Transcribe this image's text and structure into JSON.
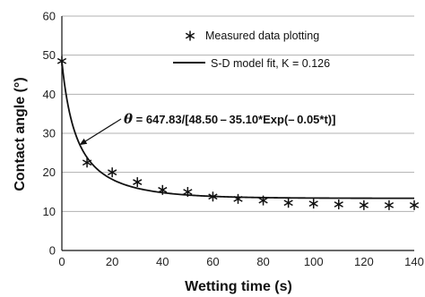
{
  "chart_data": {
    "type": "scatter",
    "xlabel": "Wetting time (s)",
    "ylabel": "Contact angle (°)",
    "xlim": [
      0,
      140
    ],
    "ylim": [
      0,
      60
    ],
    "xticks": [
      0,
      20,
      40,
      60,
      80,
      100,
      120,
      140
    ],
    "yticks": [
      0,
      10,
      20,
      30,
      40,
      50,
      60
    ],
    "grid": "horizontal",
    "legend_position": "top-right",
    "series": [
      {
        "name": "Measured data plotting",
        "kind": "marker",
        "marker": "asterisk",
        "x": [
          0,
          10,
          20,
          30,
          40,
          50,
          60,
          70,
          80,
          90,
          100,
          110,
          120,
          130,
          140
        ],
        "y": [
          48.5,
          22.5,
          20.0,
          17.5,
          15.5,
          15.0,
          13.8,
          13.2,
          12.8,
          12.2,
          12.0,
          11.8,
          11.6,
          11.6,
          11.6
        ]
      },
      {
        "name": "S-D model  fit,  K = 0.126",
        "kind": "line",
        "model": {
          "a": 647.83,
          "b": 48.5,
          "c": 35.1,
          "k": 0.05
        }
      }
    ],
    "annotation": {
      "symbol": "θ",
      "formula": "= 647.83/[48.50 – 35.10*Exp(– 0.05*t)]",
      "points_to": [
        7,
        27
      ]
    }
  },
  "colors": {
    "line": "#111111",
    "grid": "#b0b0b0",
    "axis": "#111111"
  }
}
